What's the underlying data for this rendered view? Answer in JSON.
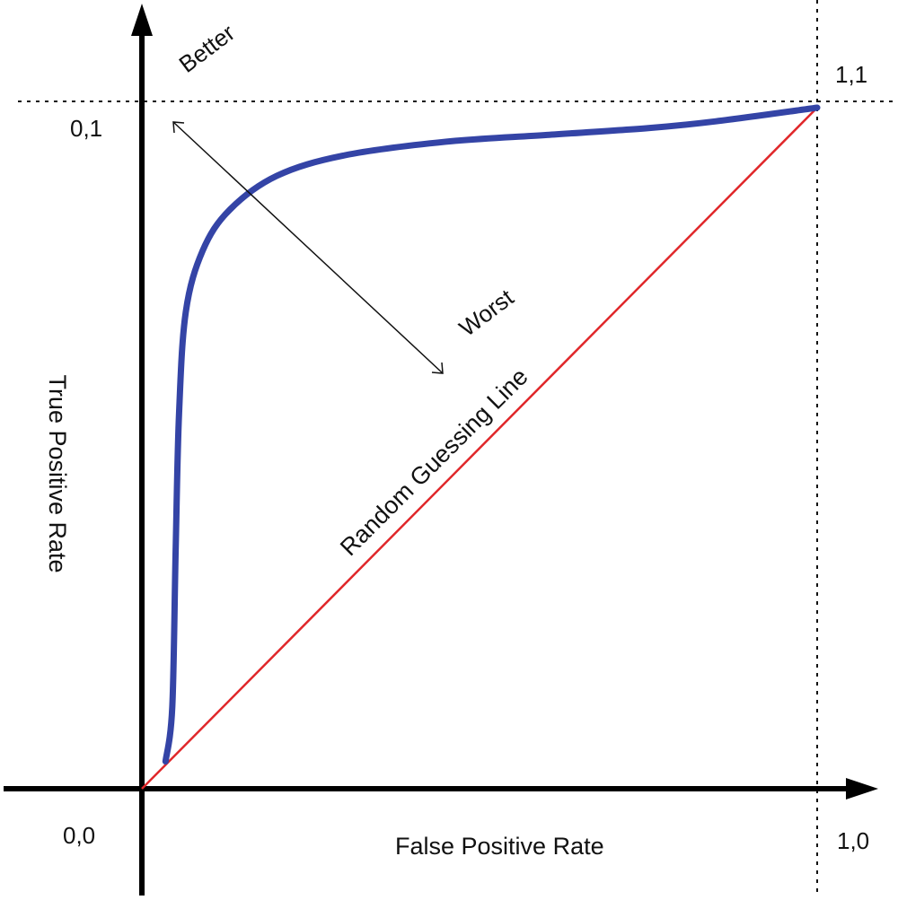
{
  "chart_data": {
    "type": "line",
    "xlabel": "False Positive Rate",
    "ylabel": "True Positive Rate",
    "xlim": [
      0,
      1
    ],
    "ylim": [
      0,
      1
    ],
    "grid": false,
    "corner_labels": {
      "origin": "0,0",
      "top_left": "0,1",
      "bottom_right": "1,0",
      "top_right": "1,1"
    },
    "annotations": {
      "better": "Better",
      "worst": "Worst",
      "random_line": "Random Guessing Line"
    },
    "series": [
      {
        "color": "#3444a6",
        "x": [
          0.035,
          0.045,
          0.05,
          0.055,
          0.065,
          0.09,
          0.13,
          0.2,
          0.3,
          0.45,
          0.6,
          0.75,
          0.85,
          1.0
        ],
        "y": [
          0.04,
          0.12,
          0.35,
          0.55,
          0.7,
          0.79,
          0.85,
          0.9,
          0.93,
          0.95,
          0.96,
          0.97,
          0.98,
          1.0
        ]
      },
      {
        "name": "Random Guessing Line",
        "color": "#e0272a",
        "x": [
          0,
          1
        ],
        "y": [
          0,
          1
        ]
      }
    ]
  }
}
